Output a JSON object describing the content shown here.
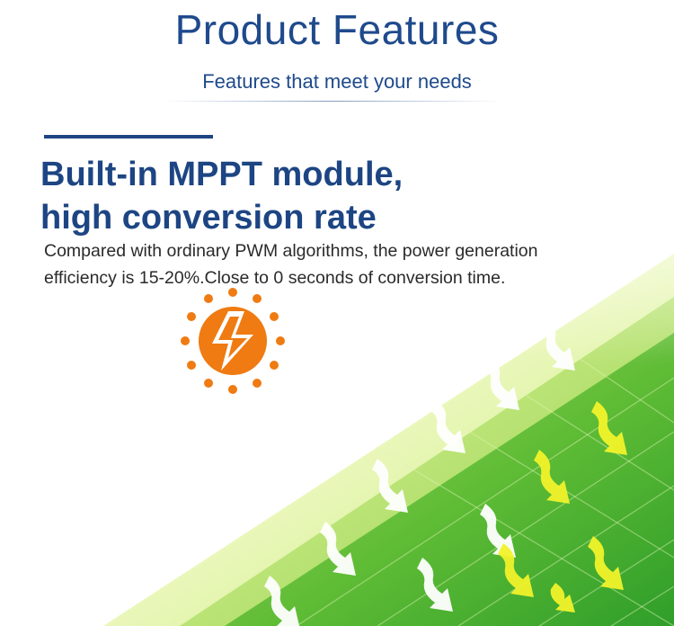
{
  "header": {
    "title": "Product Features",
    "subtitle": "Features that meet your needs"
  },
  "feature": {
    "headline_line1": "Built-in MPPT module,",
    "headline_line2": "high conversion rate",
    "description_line1": "Compared with ordinary PWM algorithms, the power generation",
    "description_line2": "efficiency is 15-20%.Close to 0 seconds of conversion time."
  },
  "icons": {
    "feature_icon": "lightning-sun-icon",
    "arrow_icon": "sun-ray-arrow-icon"
  },
  "colors": {
    "brand_blue": "#1d4583",
    "accent_orange": "#ef7b12",
    "panel_green": "#57b82f",
    "panel_light": "#eef8c8",
    "arrow_yellow": "#f1f32a"
  }
}
